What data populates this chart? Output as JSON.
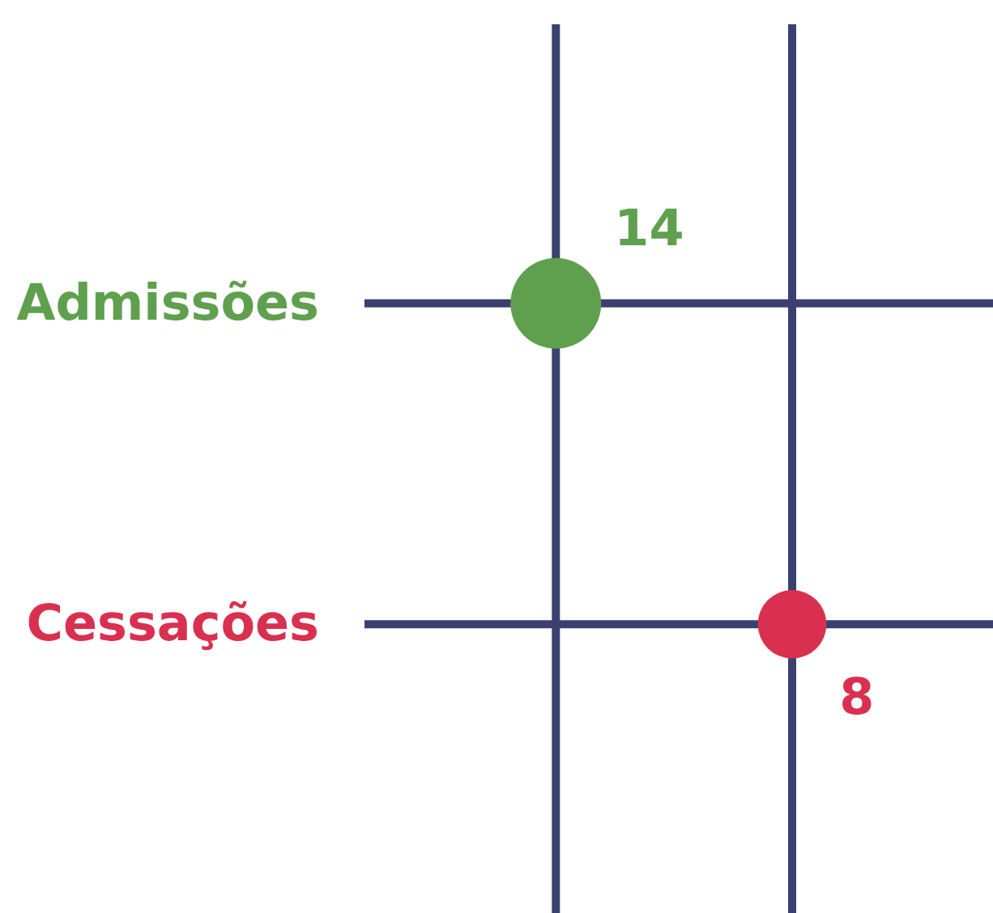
{
  "chart_data": {
    "type": "other",
    "categories": [
      "Admissões",
      "Cessações"
    ],
    "values": [
      14,
      8
    ],
    "colors": [
      "#5fa04e",
      "#d9304f"
    ],
    "data_labels": true
  }
}
